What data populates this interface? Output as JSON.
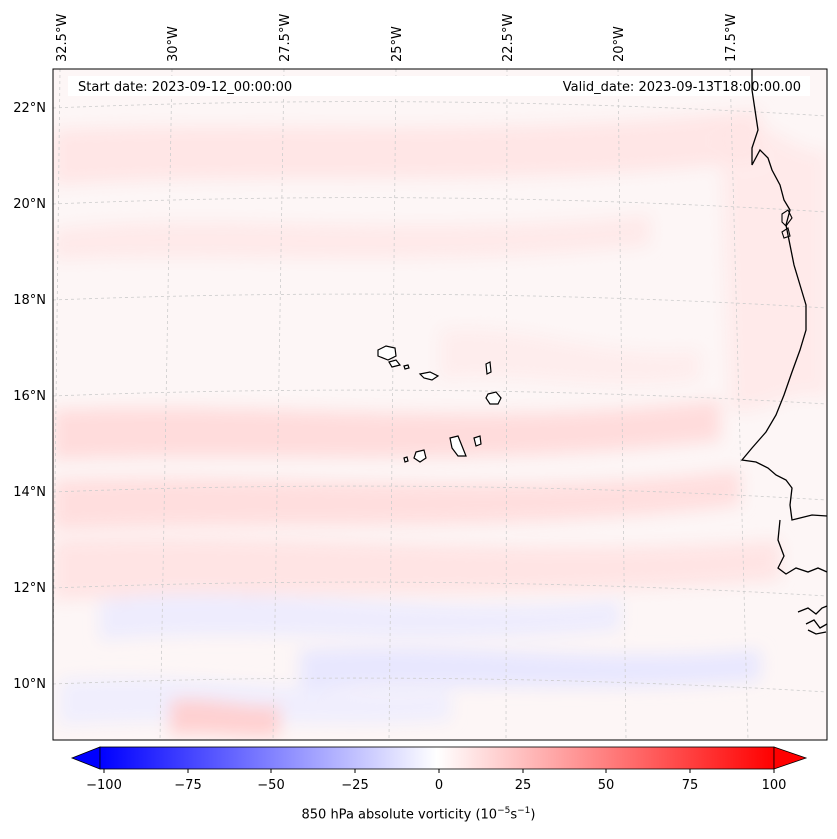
{
  "map": {
    "start_date_label": "Start date: 2023-09-12_00:00:00",
    "valid_date_label": "Valid_date: 2023-09-13T18:00:00.00",
    "longitude_labels": [
      "32.5°W",
      "30°W",
      "27.5°W",
      "25°W",
      "22.5°W",
      "20°W",
      "17.5°W"
    ],
    "latitude_labels": [
      "22°N",
      "20°N",
      "18°N",
      "16°N",
      "14°N",
      "12°N",
      "10°N"
    ],
    "field_name": "850 hPa absolute vorticity",
    "units_text": "(10",
    "units_exp1": "−5",
    "units_mid": "s",
    "units_exp2": "−1",
    "units_close": ")",
    "coastline_color": "#000000",
    "grid_color": "#cccccc"
  },
  "colorbar": {
    "tick_labels": [
      "−100",
      "−75",
      "−50",
      "−25",
      "0",
      "25",
      "50",
      "75",
      "100"
    ],
    "min_color": "#0000ff",
    "mid_color": "#ffffff",
    "max_color": "#ff0000",
    "extend": "both"
  }
}
